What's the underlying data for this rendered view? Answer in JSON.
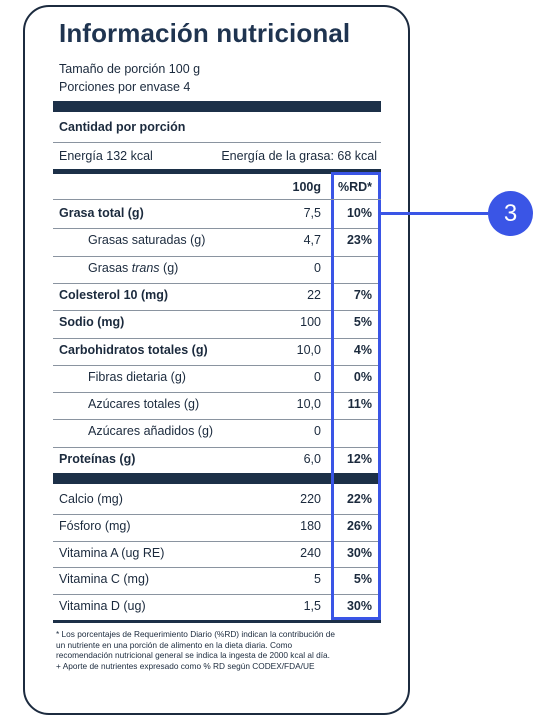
{
  "label": {
    "title": "Información nutricional",
    "serving_size": "Tamaño de porción 100 g",
    "servings_per_container": "Porciones por envase 4",
    "amount_per_serving": "Cantidad por porción",
    "energy": "Energía 132 kcal",
    "energy_fat": "Energía de la grasa: 68 kcal",
    "col_amount": "100g",
    "col_pct": "%RD*",
    "rows_a": [
      {
        "name_pre": "Grasa total (g)",
        "name_em": "",
        "name_post": "",
        "value": "7,5",
        "pct": "10%",
        "bold": true,
        "indent": false
      },
      {
        "name_pre": "Grasas saturadas (g)",
        "name_em": "",
        "name_post": "",
        "value": "4,7",
        "pct": "23%",
        "bold": false,
        "indent": true
      },
      {
        "name_pre": "Grasas ",
        "name_em": "trans",
        "name_post": " (g)",
        "value": "0",
        "pct": "",
        "bold": false,
        "indent": true
      },
      {
        "name_pre": "Colesterol 10 (mg)",
        "name_em": "",
        "name_post": "",
        "value": "22",
        "pct": "7%",
        "bold": true,
        "indent": false
      },
      {
        "name_pre": "Sodio (mg)",
        "name_em": "",
        "name_post": "",
        "value": "100",
        "pct": "5%",
        "bold": true,
        "indent": false
      },
      {
        "name_pre": "Carbohidratos totales (g)",
        "name_em": "",
        "name_post": "",
        "value": "10,0",
        "pct": "4%",
        "bold": true,
        "indent": false
      },
      {
        "name_pre": "Fibras dietaria (g)",
        "name_em": "",
        "name_post": "",
        "value": "0",
        "pct": "0%",
        "bold": false,
        "indent": true
      },
      {
        "name_pre": "Azúcares totales (g)",
        "name_em": "",
        "name_post": "",
        "value": "10,0",
        "pct": "11%",
        "bold": false,
        "indent": true
      },
      {
        "name_pre": "Azúcares añadidos  (g)",
        "name_em": "",
        "name_post": "",
        "value": "0",
        "pct": "",
        "bold": false,
        "indent": true
      },
      {
        "name_pre": "Proteínas (g)",
        "name_em": "",
        "name_post": "",
        "value": "6,0",
        "pct": "12%",
        "bold": true,
        "indent": false
      }
    ],
    "rows_b": [
      {
        "name_pre": "Calcio (mg)",
        "name_em": "",
        "name_post": "",
        "value": "220",
        "pct": "22%",
        "bold": false,
        "indent": false
      },
      {
        "name_pre": "Fósforo (mg)",
        "name_em": "",
        "name_post": "",
        "value": "180",
        "pct": "26%",
        "bold": false,
        "indent": false
      },
      {
        "name_pre": "Vitamina A (ug RE)",
        "name_em": "",
        "name_post": "",
        "value": "240",
        "pct": "30%",
        "bold": false,
        "indent": false
      },
      {
        "name_pre": "Vitamina C (mg)",
        "name_em": "",
        "name_post": "",
        "value": "5",
        "pct": "5%",
        "bold": false,
        "indent": false
      },
      {
        "name_pre": "Vitamina D (ug)",
        "name_em": "",
        "name_post": "",
        "value": "1,5",
        "pct": "30%",
        "bold": false,
        "indent": false
      }
    ],
    "footnote": [
      "* Los porcentajes de Requerimiento Diario (%RD) indican la contribución de",
      "un nutriente en una porción de alimento en la dieta diaria. Como",
      "recomendación nutricional general se indica la ingesta de 2000 kcal al día.",
      "+ Aporte de nutrientes expresado como % RD según CODEX/FDA/UE"
    ]
  },
  "callout": {
    "number": "3",
    "color": "#3a55e6"
  },
  "colors": {
    "bar": "#1c3048",
    "title": "#1f3450"
  }
}
